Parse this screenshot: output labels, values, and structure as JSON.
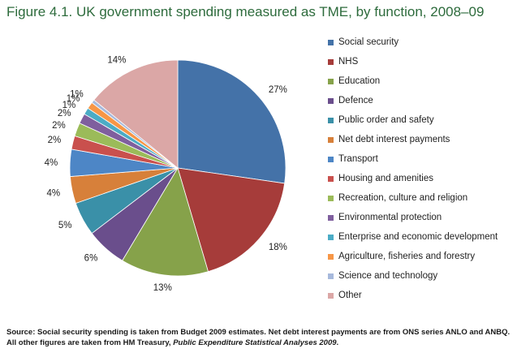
{
  "title": "Figure 4.1. UK government spending measured as TME, by function, 2008–09",
  "colors": {
    "title": "#2d6b3c",
    "slices": [
      "#4472a8",
      "#a63c3a",
      "#86a24a",
      "#6a4e8c",
      "#3a90a8",
      "#d7803a",
      "#4d86c6",
      "#c9504d",
      "#9bbb59",
      "#7f5f9e",
      "#4bacc6",
      "#f79646",
      "#a7b9dc",
      "#dba7a6"
    ]
  },
  "chart_data": {
    "type": "pie",
    "title": "Figure 4.1. UK government spending measured as TME, by function, 2008–09",
    "categories": [
      "Social security",
      "NHS",
      "Education",
      "Defence",
      "Public order and safety",
      "Net debt interest payments",
      "Transport",
      "Housing and amenities",
      "Recreation, culture and religion",
      "Environmental protection",
      "Enterprise and economic development",
      "Agriculture, fisheries and forestry",
      "Science and technology",
      "Other"
    ],
    "values": [
      27,
      18,
      13,
      6,
      5,
      4,
      4,
      2,
      2,
      1.5,
      1,
      1,
      0.5,
      14
    ],
    "labels": [
      "27%",
      "18%",
      "13%",
      "6%",
      "5%",
      "4%",
      "4%",
      "2%",
      "2%",
      "2%",
      "1%",
      "1%",
      "1%",
      "14%"
    ],
    "legend_position": "right"
  },
  "footer": {
    "source": "Source: Social security spending is taken from Budget 2009 estimates. Net debt interest payments are from ONS series ANLO and ANBQ. All other figures are taken from HM Treasury, ",
    "publication": "Public Expenditure Statistical Analyses 2009",
    "end": "."
  }
}
